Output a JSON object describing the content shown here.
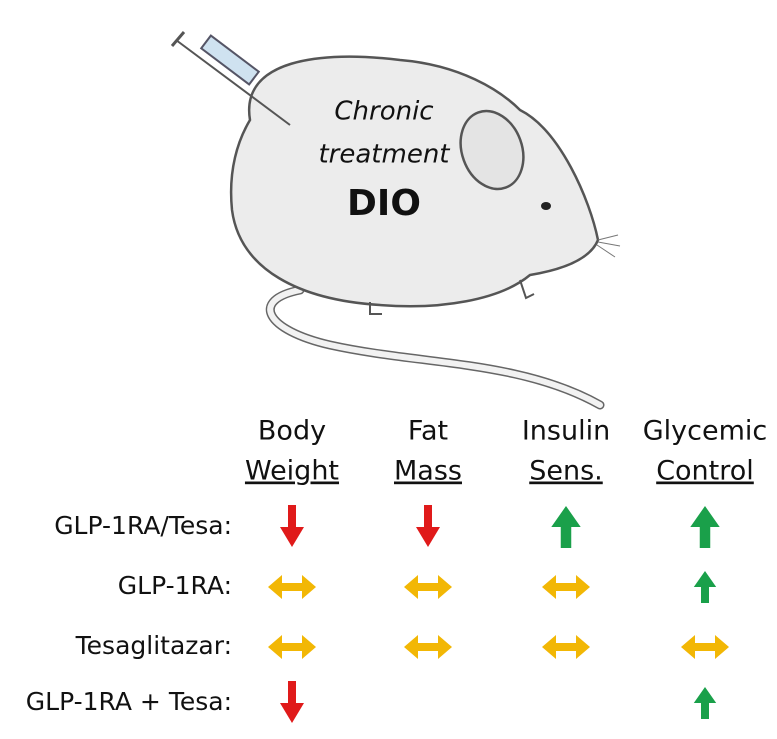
{
  "mouse": {
    "line1": "Chronic",
    "line2": "treatment",
    "label": "DIO"
  },
  "columns": [
    {
      "line1": "Body",
      "line2": "Weight"
    },
    {
      "line1": "Fat",
      "line2": "Mass"
    },
    {
      "line1": "Insulin",
      "line2": "Sens."
    },
    {
      "line1": "Glycemic",
      "line2": "Control"
    }
  ],
  "rows": [
    "GLP-1RA/Tesa:",
    "GLP-1RA:",
    "Tesaglitazar:",
    "GLP-1RA + Tesa:"
  ]
}
